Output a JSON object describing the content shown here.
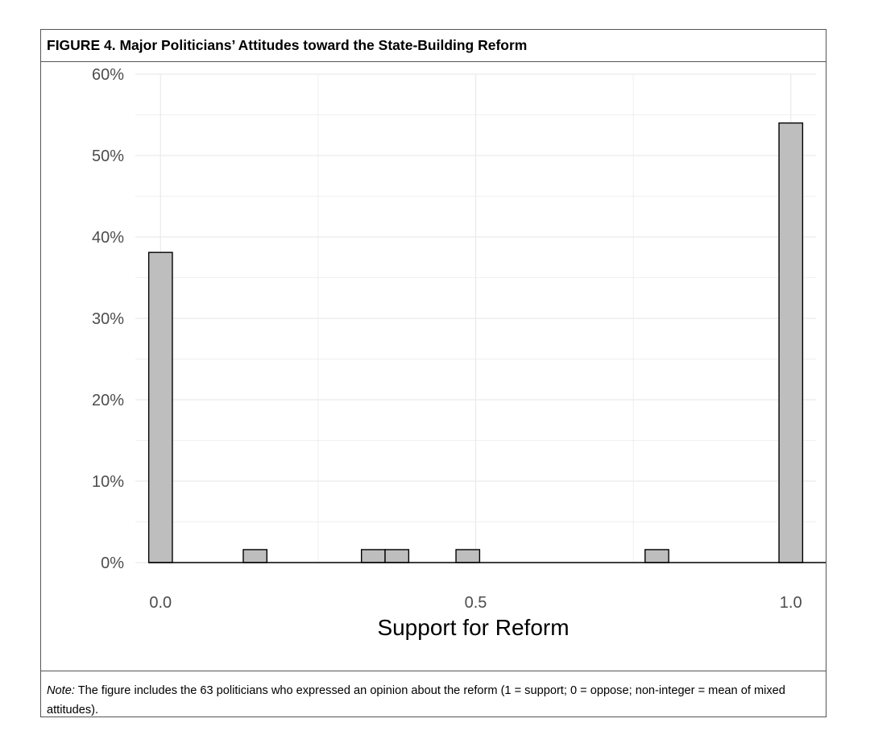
{
  "figure": {
    "label": "FIGURE 4.",
    "title": "Major Politicians’ Attitudes toward the State-Building Reform",
    "note_label": "Note:",
    "note_text": "The figure includes the 63 politicians who expressed an opinion about the reform (1 = support; 0 = oppose; non-integer = mean of mixed attitudes)."
  },
  "chart_data": {
    "type": "bar",
    "title": "",
    "xlabel": "Support for Reform",
    "ylabel": "",
    "xlim": [
      -0.04,
      1.04
    ],
    "ylim": [
      0,
      0.6
    ],
    "x_ticks": [
      0.0,
      0.5,
      1.0
    ],
    "x_tick_labels": [
      "0.0",
      "0.5",
      "1.0"
    ],
    "y_ticks": [
      0,
      0.1,
      0.2,
      0.3,
      0.4,
      0.5,
      0.6
    ],
    "y_tick_labels": [
      "0%",
      "10%",
      "20%",
      "30%",
      "40%",
      "50%",
      "60%"
    ],
    "grid": true,
    "bin_width": 0.0375,
    "bars": [
      {
        "x": 0.0,
        "value": 0.381
      },
      {
        "x": 0.15,
        "value": 0.0159
      },
      {
        "x": 0.3375,
        "value": 0.0159
      },
      {
        "x": 0.375,
        "value": 0.0159
      },
      {
        "x": 0.4875,
        "value": 0.0159
      },
      {
        "x": 0.7875,
        "value": 0.0159
      },
      {
        "x": 1.0,
        "value": 0.54
      }
    ],
    "colors": {
      "bar_fill": "#bebebe",
      "bar_stroke": "#000000",
      "grid": "#ebebeb"
    }
  }
}
